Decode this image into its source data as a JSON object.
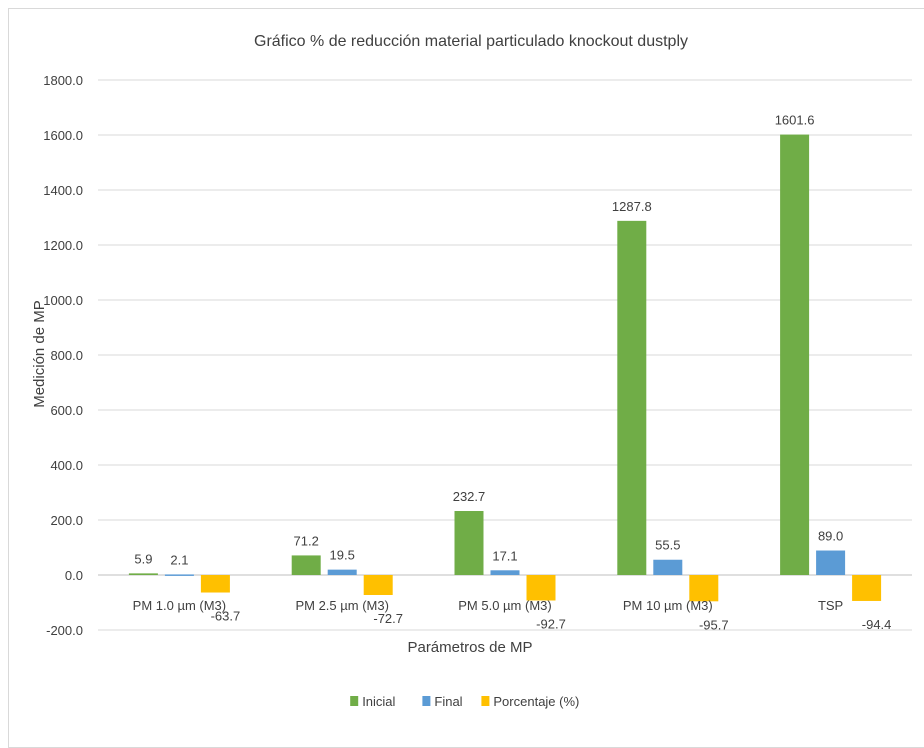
{
  "chart_data": {
    "type": "bar",
    "title": "Gráfico % de reducción material particulado knockout dustply",
    "xlabel": "Parámetros de MP",
    "ylabel": "Medición de MP",
    "categories": [
      "PM 1.0 µm (M3)",
      "PM 2.5 µm (M3)",
      "PM 5.0 µm (M3)",
      "PM 10 µm (M3)",
      "TSP"
    ],
    "series": [
      {
        "name": "Inicial",
        "color": "#70ad47",
        "values": [
          5.9,
          71.2,
          232.7,
          1287.8,
          1601.6
        ],
        "labels": [
          "5.9",
          "71.2",
          "232.7",
          "1287.8",
          "1601.6"
        ]
      },
      {
        "name": "Final",
        "color": "#5b9bd5",
        "values": [
          2.1,
          19.5,
          17.1,
          55.5,
          89.0
        ],
        "labels": [
          "2.1",
          "19.5",
          "17.1",
          "55.5",
          "89.0"
        ]
      },
      {
        "name": "Porcentaje (%)",
        "color": "#ffc000",
        "values": [
          -63.7,
          -72.7,
          -92.7,
          -95.7,
          -94.4
        ],
        "labels": [
          "-63.7",
          "-72.7",
          "-92.7",
          "-95.7",
          "-94.4"
        ]
      }
    ],
    "ylim": [
      -200,
      1800
    ],
    "yticks": [
      "1800.0",
      "1600.0",
      "1400.0",
      "1200.0",
      "1000.0",
      "800.0",
      "600.0",
      "400.0",
      "200.0",
      "0.0",
      "-200.0"
    ],
    "ytick_values": [
      1800,
      1600,
      1400,
      1200,
      1000,
      800,
      600,
      400,
      200,
      0,
      -200
    ],
    "grid": true,
    "legend_position": "bottom"
  }
}
